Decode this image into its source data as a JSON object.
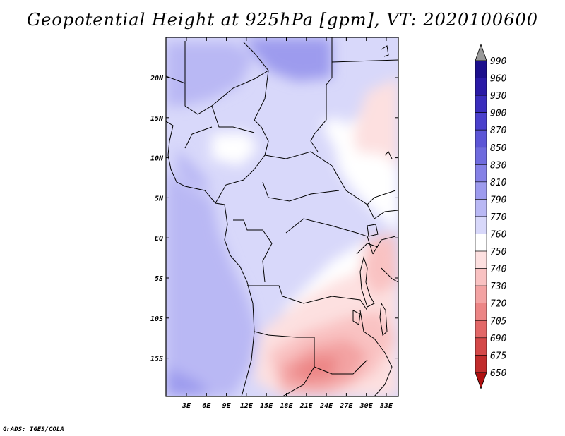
{
  "title": "Geopotential Height at 925hPa [gpm], VT: 2020100600",
  "footer": "GrADS: IGES/COLA",
  "map": {
    "region": "Central and Southern Africa",
    "lat_labels": [
      "20N",
      "15N",
      "10N",
      "5N",
      "EQ",
      "5S",
      "10S",
      "15S"
    ],
    "lon_labels": [
      "3E",
      "6E",
      "9E",
      "12E",
      "15E",
      "18E",
      "21E",
      "24E",
      "27E",
      "30E",
      "33E"
    ]
  },
  "colorbar": {
    "levels": [
      "990",
      "960",
      "930",
      "900",
      "870",
      "850",
      "830",
      "810",
      "790",
      "770",
      "760",
      "750",
      "740",
      "730",
      "720",
      "705",
      "690",
      "675",
      "650"
    ],
    "colors": [
      "#1c0f8c",
      "#2a1aa6",
      "#3a2dbd",
      "#4a40cc",
      "#5c55d6",
      "#6f6bde",
      "#8581e6",
      "#9d9bee",
      "#b9b8f4",
      "#d8d8fa",
      "#ffffff",
      "#fde0e0",
      "#f9c2c2",
      "#f3a3a3",
      "#ec8585",
      "#e26767",
      "#d44848",
      "#c12c2c",
      "#a51414"
    ],
    "top_arrow_color": "#999999",
    "bottom_arrow_color": "#b01010"
  }
}
